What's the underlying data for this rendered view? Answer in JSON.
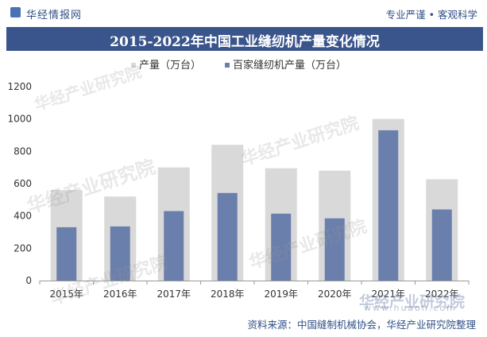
{
  "header": {
    "brand": "华经情报网",
    "tagline": "专业严谨 • 客观科学"
  },
  "watermark": {
    "text": "华经产业研究院",
    "url": "www.huaon.com"
  },
  "source": "资料来源：中国缝制机械协会，华经产业研究院整理",
  "colors": {
    "total": "#d9d9d9",
    "baijia": "#6b7fac",
    "header_bg": "#3a558c",
    "brand": "#2e4f86"
  },
  "chart_data": {
    "type": "bar",
    "title": "2015-2022年中国工业缝纫机产量变化情况",
    "categories": [
      "2015年",
      "2016年",
      "2017年",
      "2018年",
      "2019年",
      "2020年",
      "2021年",
      "2022年"
    ],
    "series": [
      {
        "name": "产量（万台）",
        "values": [
          560,
          520,
          700,
          840,
          695,
          680,
          1000,
          627
        ]
      },
      {
        "name": "百家缝纫机产量（万台）",
        "values": [
          330,
          335,
          430,
          542,
          414,
          385,
          930,
          440
        ]
      }
    ],
    "ylim": [
      0,
      1200
    ],
    "yticks": [
      "0",
      "200",
      "400",
      "600",
      "800",
      "1000",
      "1200"
    ],
    "grid": false,
    "legend": "top-left"
  }
}
